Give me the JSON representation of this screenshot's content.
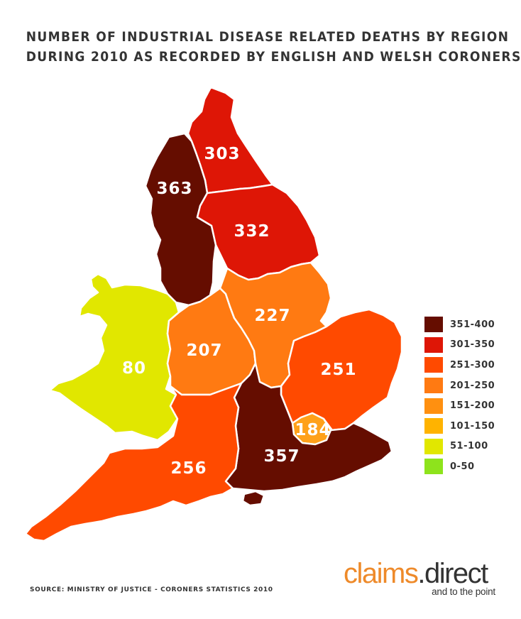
{
  "title": {
    "line1": "NUMBER OF INDUSTRIAL DISEASE RELATED DEATHS BY REGION",
    "line2": "DURING 2010 AS RECORDED BY ENGLISH AND WELSH CORONERS"
  },
  "regions": {
    "north_east": {
      "value": "303",
      "color": "#de1606"
    },
    "north_west": {
      "value": "363",
      "color": "#650d00"
    },
    "yorkshire": {
      "value": "332",
      "color": "#de1606"
    },
    "wales": {
      "value": "80",
      "color": "#e1e700"
    },
    "west_midlands": {
      "value": "207",
      "color": "#ff7a12"
    },
    "east_midlands": {
      "value": "227",
      "color": "#ff7a12"
    },
    "east": {
      "value": "251",
      "color": "#ff4a00"
    },
    "london": {
      "value": "184",
      "color": "#ffa11a"
    },
    "south_east": {
      "value": "357",
      "color": "#650d00"
    },
    "south_west": {
      "value": "256",
      "color": "#ff4a00"
    }
  },
  "legend": [
    {
      "label": "351-400",
      "color": "#650d00"
    },
    {
      "label": "301-350",
      "color": "#de1606"
    },
    {
      "label": "251-300",
      "color": "#ff4a00"
    },
    {
      "label": "201-250",
      "color": "#ff7a12"
    },
    {
      "label": "151-200",
      "color": "#ff9010"
    },
    {
      "label": "101-150",
      "color": "#ffb300"
    },
    {
      "label": "51-100",
      "color": "#e1e700"
    },
    {
      "label": "0-50",
      "color": "#8ee31c"
    }
  ],
  "source": "SOURCE: MINISTRY OF JUSTICE - CORONERS STATISTICS 2010",
  "logo": {
    "part1": "claims",
    "dot": ".",
    "part2": "direct",
    "tagline": "and to the point"
  }
}
